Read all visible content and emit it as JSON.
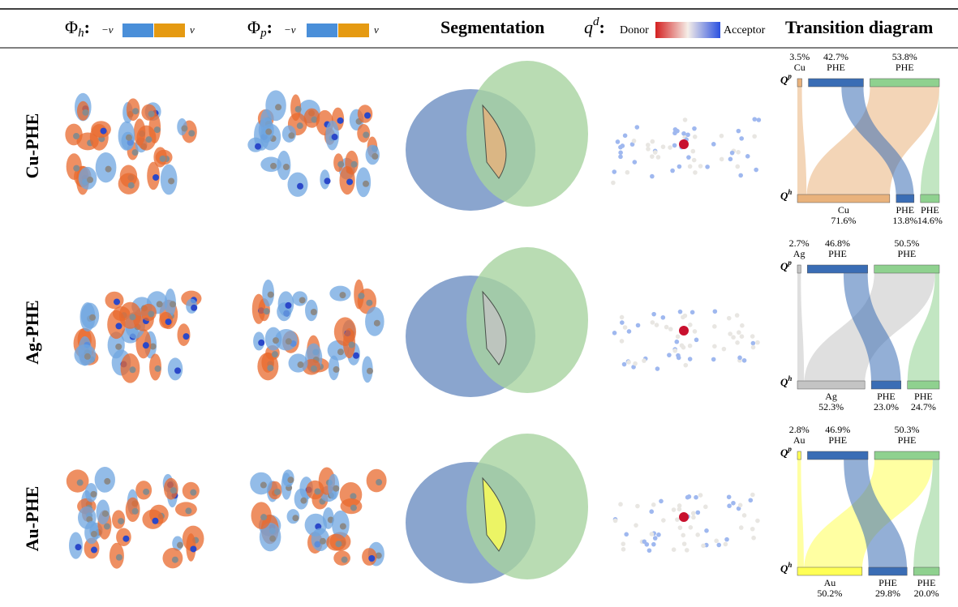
{
  "header": {
    "phi_h": {
      "symbol": "Φ",
      "sub": "h",
      "neg": "−v",
      "pos": "v"
    },
    "phi_p": {
      "symbol": "Φ",
      "sub": "p",
      "neg": "−v",
      "pos": "v"
    },
    "segmentation": "Segmentation",
    "qd": {
      "symbol": "q",
      "sup": "d",
      "donor": "Donor",
      "acceptor": "Acceptor"
    },
    "transition": "Transition diagram"
  },
  "transition_labels": {
    "q": "Q",
    "top_sup": "p",
    "bottom_sup": "h"
  },
  "rows": [
    {
      "name": "Cu-PHE",
      "top": [
        {
          "label": "Cu",
          "pct": "3.5%"
        },
        {
          "label": "PHE",
          "pct": "42.7%"
        },
        {
          "label": "PHE",
          "pct": "53.8%"
        }
      ],
      "bottom": [
        {
          "label": "Cu",
          "pct": "71.6%"
        },
        {
          "label": "PHE",
          "pct": "13.8%"
        },
        {
          "label": "PHE",
          "pct": "14.6%"
        }
      ],
      "metal_color": "#e9b27c"
    },
    {
      "name": "Ag-PHE",
      "top": [
        {
          "label": "Ag",
          "pct": "2.7%"
        },
        {
          "label": "PHE",
          "pct": "46.8%"
        },
        {
          "label": "PHE",
          "pct": "50.5%"
        }
      ],
      "bottom": [
        {
          "label": "Ag",
          "pct": "52.3%"
        },
        {
          "label": "PHE",
          "pct": "23.0%"
        },
        {
          "label": "PHE",
          "pct": "24.7%"
        }
      ],
      "metal_color": "#c4c4c4"
    },
    {
      "name": "Au-PHE",
      "top": [
        {
          "label": "Au",
          "pct": "2.8%"
        },
        {
          "label": "PHE",
          "pct": "46.9%"
        },
        {
          "label": "PHE",
          "pct": "50.3%"
        }
      ],
      "bottom": [
        {
          "label": "Au",
          "pct": "50.2%"
        },
        {
          "label": "PHE",
          "pct": "29.8%"
        },
        {
          "label": "PHE",
          "pct": "20.0%"
        }
      ],
      "metal_color": "#ffff55"
    }
  ]
}
